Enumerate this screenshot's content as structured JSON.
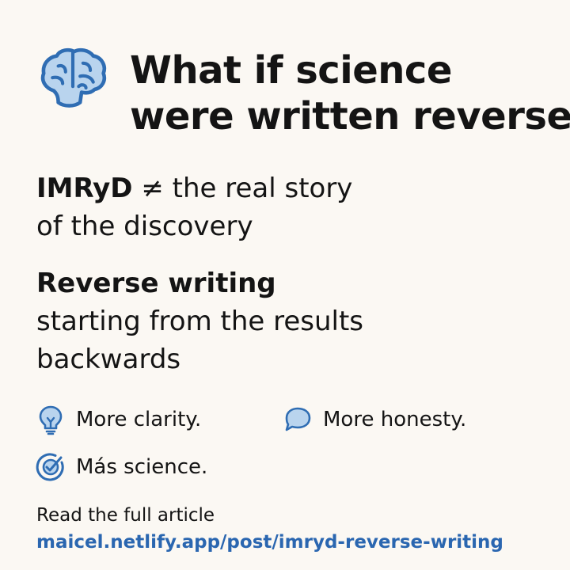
{
  "header": {
    "icon": "brain-icon",
    "title_line1": "What if science",
    "title_line2": "were written reverse?"
  },
  "section1": {
    "strong": "IMRyD",
    "rest_line1": " ≠ the real story",
    "line2": "of the discovery"
  },
  "section2": {
    "heading": "Reverse writing",
    "line1": "starting from the results",
    "line2": "backwards"
  },
  "features": [
    {
      "icon": "lightbulb-icon",
      "label": "More clarity."
    },
    {
      "icon": "speech-bubble-icon",
      "label": "More honesty."
    },
    {
      "icon": "target-check-icon",
      "label": "Más science."
    }
  ],
  "footer": {
    "label": "Read the full article",
    "link": "maicel.netlify.app/post/imryd-reverse-writing"
  },
  "colors": {
    "background": "#fbf8f3",
    "text": "#141414",
    "accent": "#2a66b0",
    "icon_fill": "#b9d4ee",
    "icon_stroke": "#2f6db3"
  }
}
